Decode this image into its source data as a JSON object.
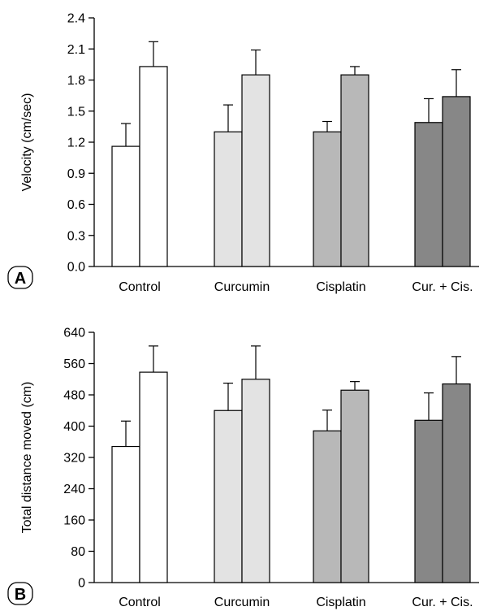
{
  "colors": {
    "Control": "#ffffff",
    "Curcumin": "#e3e3e3",
    "Cisplatin": "#b8b8b8",
    "Cur. + Cis.": "#878787",
    "stroke": "#000000"
  },
  "chart_data": [
    {
      "type": "bar",
      "panel": "A",
      "title": "",
      "xlabel": "",
      "ylabel": "Velocity (cm/sec)",
      "ylim": [
        0,
        2.4
      ],
      "yticks": [
        "0.0",
        "0.3",
        "0.6",
        "0.9",
        "1.2",
        "1.5",
        "1.8",
        "2.1",
        "2.4"
      ],
      "categories": [
        "Control",
        "Curcumin",
        "Cisplatin",
        "Cur. + Cis."
      ],
      "series": [
        {
          "values": [
            1.16,
            1.3,
            1.3,
            1.39
          ],
          "errors": [
            0.22,
            0.26,
            0.1,
            0.23
          ]
        },
        {
          "values": [
            1.93,
            1.85,
            1.85,
            1.64
          ],
          "errors": [
            0.24,
            0.24,
            0.08,
            0.26
          ]
        }
      ],
      "grid": false
    },
    {
      "type": "bar",
      "panel": "B",
      "title": "",
      "xlabel": "",
      "ylabel": "Total distance moved (cm)",
      "ylim": [
        0,
        640
      ],
      "yticks": [
        "0",
        "80",
        "160",
        "240",
        "320",
        "400",
        "480",
        "560",
        "640"
      ],
      "categories": [
        "Control",
        "Curcumin",
        "Cisplatin",
        "Cur. + Cis."
      ],
      "series": [
        {
          "values": [
            348,
            440,
            388,
            415
          ],
          "errors": [
            65,
            70,
            53,
            70
          ]
        },
        {
          "values": [
            538,
            520,
            492,
            508
          ],
          "errors": [
            67,
            85,
            22,
            70
          ]
        }
      ],
      "grid": false
    }
  ]
}
